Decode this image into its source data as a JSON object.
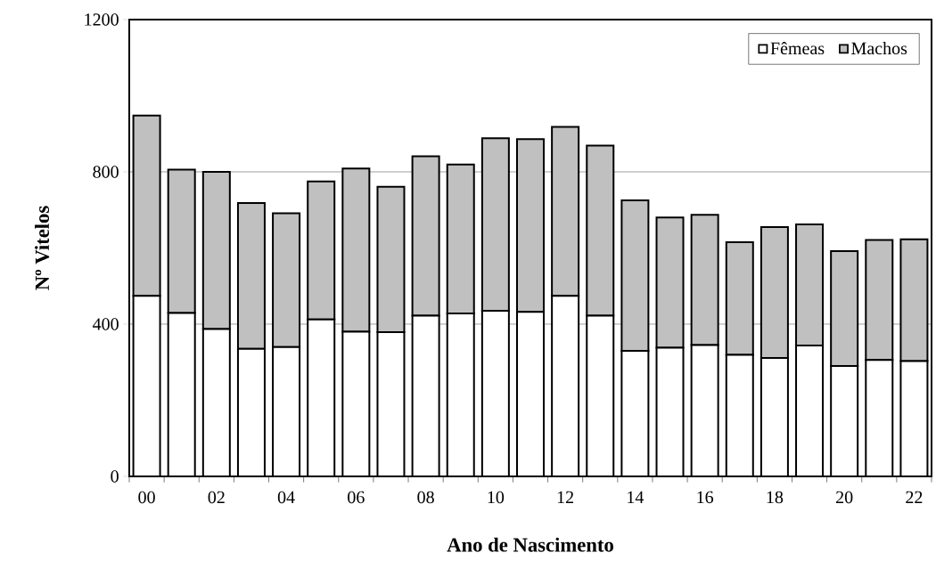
{
  "chart_data": {
    "type": "bar",
    "stacked": true,
    "xlabel": "Ano de Nascimento",
    "ylabel": "Nº Vitelos",
    "categories": [
      "00",
      null,
      "02",
      null,
      "04",
      null,
      "06",
      null,
      "08",
      null,
      "10",
      null,
      "12",
      null,
      "14",
      null,
      "16",
      null,
      "18",
      null,
      "20",
      null,
      "22"
    ],
    "series": [
      {
        "name": "Fêmeas",
        "color": "#ffffff",
        "values": [
          474,
          429,
          387,
          335,
          340,
          412,
          380,
          379,
          422,
          428,
          435,
          432,
          474,
          422,
          330,
          338,
          345,
          319,
          311,
          344,
          290,
          306,
          303
        ]
      },
      {
        "name": "Machos",
        "color": "#c0c0c0",
        "values": [
          474,
          377,
          413,
          383,
          351,
          363,
          429,
          382,
          419,
          391,
          453,
          454,
          444,
          447,
          395,
          342,
          342,
          296,
          344,
          318,
          302,
          315,
          320
        ]
      }
    ],
    "ylim": [
      0,
      1200
    ],
    "yticks": [
      0,
      400,
      800,
      1200
    ],
    "grid": "y",
    "legend": "top right"
  }
}
